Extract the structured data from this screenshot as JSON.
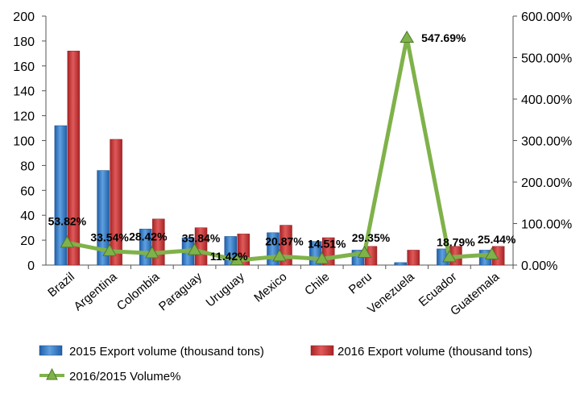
{
  "chart_data": {
    "type": "bar",
    "categories": [
      "Brazil",
      "Argentina",
      "Colombia",
      "Paraguay",
      "Uruguay",
      "Mexico",
      "Chile",
      "Peru",
      "Venezuela",
      "Ecuador",
      "Guatemala"
    ],
    "series": [
      {
        "name": "2015 Export volume (thousand tons)",
        "type": "bar",
        "axis": "left",
        "color": "#3a7fc4",
        "values": [
          112,
          76,
          29,
          22,
          23,
          26,
          19,
          12,
          2,
          13,
          12
        ]
      },
      {
        "name": "2016 Export volume (thousand tons)",
        "type": "bar",
        "axis": "right-none",
        "color": "#c8393a",
        "values": [
          172,
          101,
          37,
          30,
          25,
          32,
          22,
          15,
          12,
          15,
          15
        ]
      },
      {
        "name": "2016/2015 Volume%",
        "type": "line",
        "axis": "right",
        "color": "#7fb24a",
        "marker": "triangle",
        "values": [
          53.82,
          33.54,
          28.42,
          35.84,
          11.42,
          20.87,
          14.51,
          29.35,
          547.69,
          18.79,
          25.44
        ],
        "labels": [
          "53.82%",
          "33.54%",
          "28.42%",
          "35.84%",
          "11.42%",
          "20.87%",
          "14.51%",
          "29.35%",
          "547.69%",
          "18.79%",
          "25.44%"
        ]
      }
    ],
    "left_axis": {
      "ylim": [
        0,
        200
      ],
      "ticks": [
        "0",
        "20",
        "40",
        "60",
        "80",
        "100",
        "120",
        "140",
        "160",
        "180",
        "200"
      ]
    },
    "right_axis": {
      "ylim": [
        0,
        600
      ],
      "ticks": [
        "0.00%",
        "100.00%",
        "200.00%",
        "300.00%",
        "400.00%",
        "500.00%",
        "600.00%"
      ]
    },
    "legend_position": "bottom",
    "grid": false
  }
}
